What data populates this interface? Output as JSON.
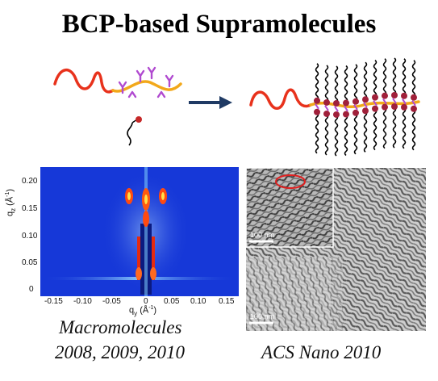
{
  "title": "BCP-based Supramolecules",
  "colors": {
    "polymer_red": "#e8321c",
    "polymer_orange": "#f2a81a",
    "ligand_purple": "#b04ad0",
    "head_maroon": "#a0203a",
    "arrow_navy": "#1f3a64",
    "saxs_bg": "#1638d8"
  },
  "saxs": {
    "y_ticks": [
      "0.20",
      "0.15",
      "0.10",
      "0.05",
      "0"
    ],
    "x_ticks": [
      "-0.15",
      "-0.10",
      "-0.05",
      "0",
      "0.05",
      "0.10",
      "0.15"
    ],
    "ylabel": "q",
    "ylabel_sub": "z",
    "ylabel_unit": "(Å",
    "ylabel_exp": "-1",
    "ylabel_close": ")",
    "xlabel": "q",
    "xlabel_sub": "y",
    "xlabel_unit": "(Å",
    "xlabel_exp": "-1",
    "xlabel_close": ")"
  },
  "tem": {
    "inset_scale": "100 nm",
    "main_scale": "100 nm"
  },
  "captions": {
    "macro_line1": "Macromolecules",
    "macro_line2": "2008, 2009, 2010",
    "acs": "ACS Nano 2010"
  }
}
